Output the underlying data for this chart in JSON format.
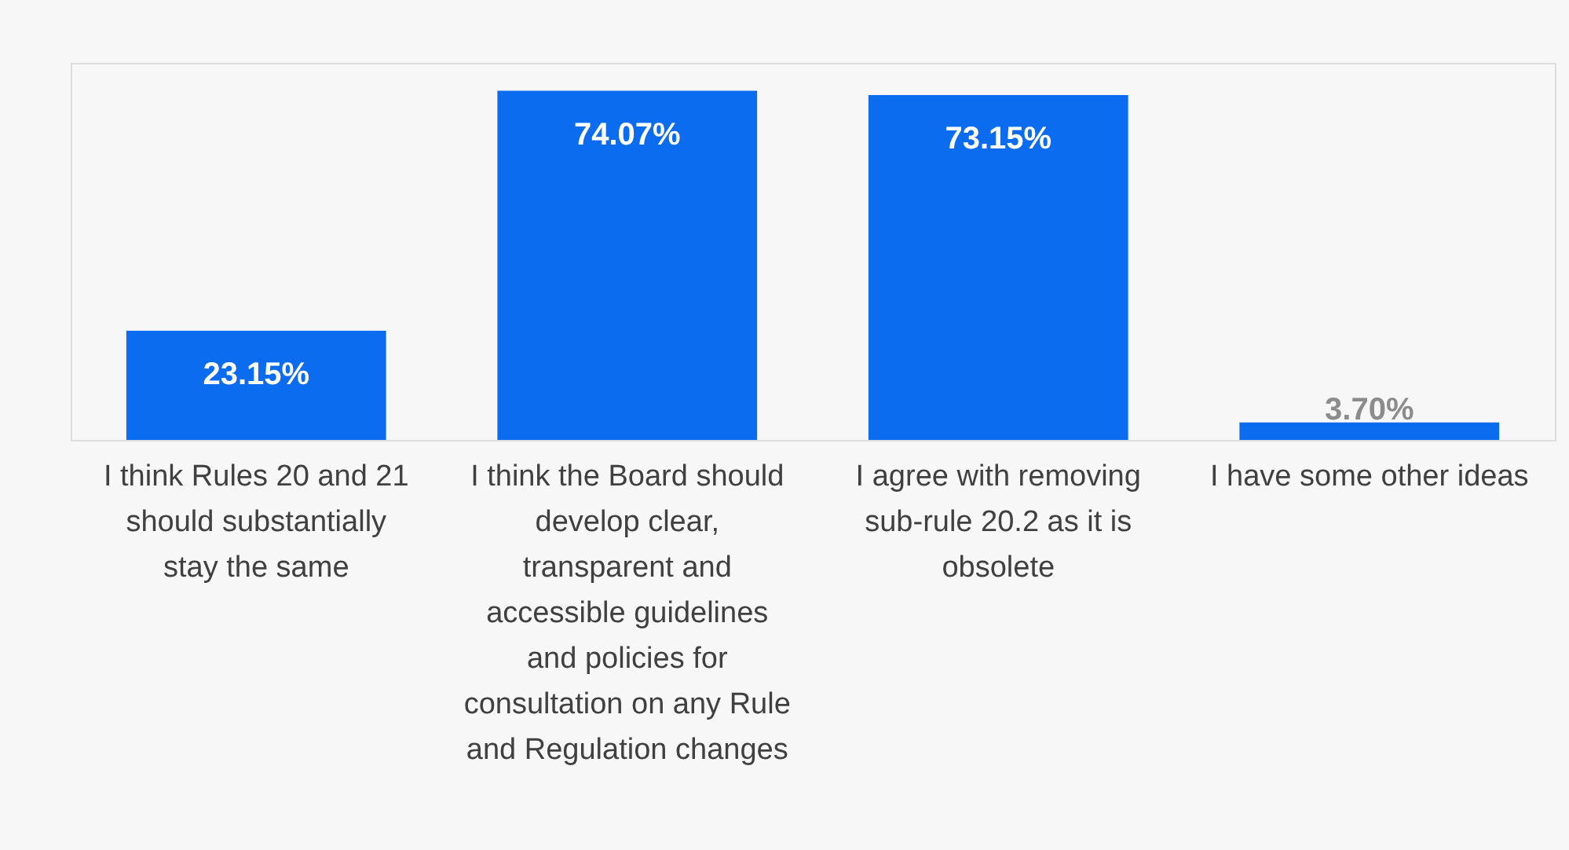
{
  "chart_data": {
    "type": "bar",
    "categories": [
      "I think Rules 20 and 21 should substantially stay the same",
      "I think the Board should develop clear, transparent and accessible guidelines and policies for consultation on any Rule and Regulation changes",
      "I agree with removing sub-rule 20.2 as it is obsolete",
      "I have some other ideas"
    ],
    "values": [
      23.15,
      74.07,
      73.15,
      3.7
    ],
    "value_labels": [
      "23.15%",
      "74.07%",
      "73.15%",
      "3.70%"
    ],
    "color": "#0b6cf0",
    "ylim": [
      0,
      80
    ],
    "grid": false
  }
}
